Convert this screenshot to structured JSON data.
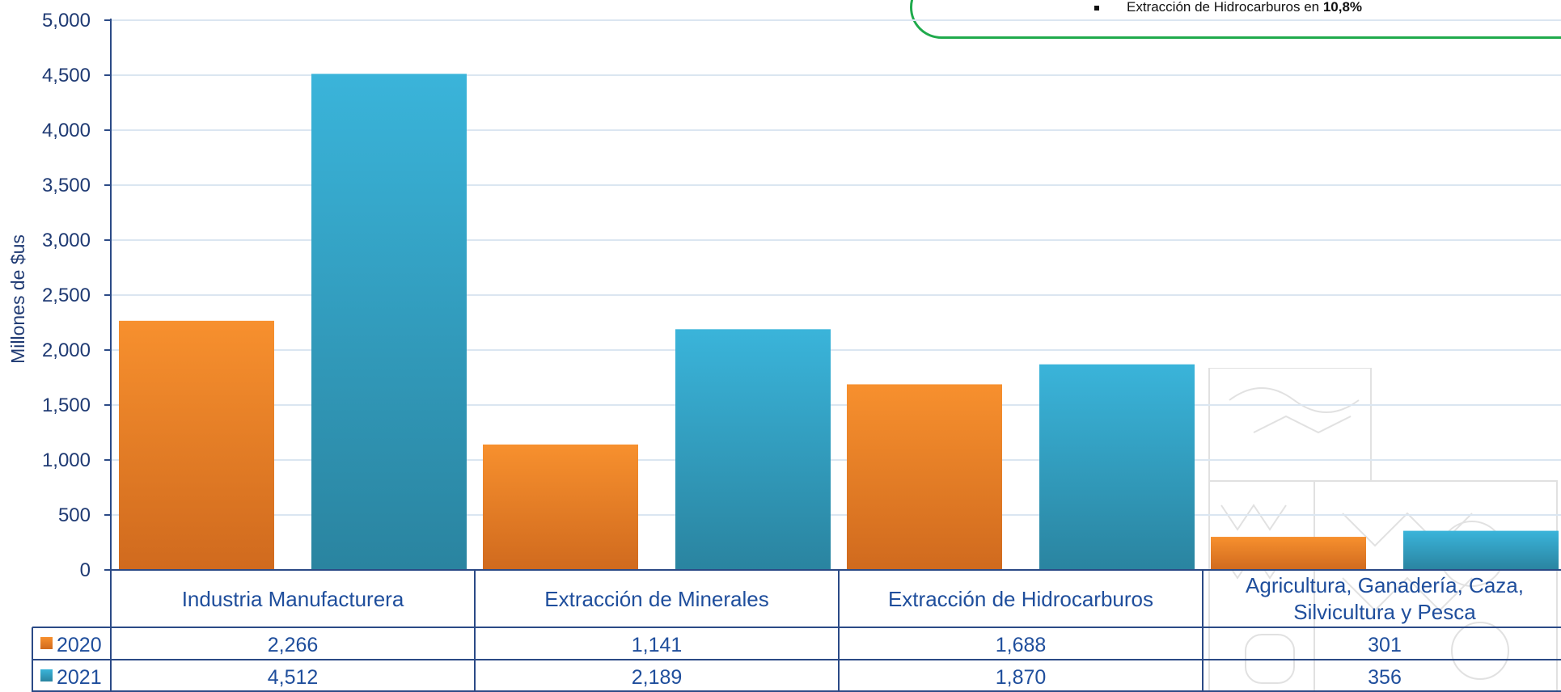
{
  "colors": {
    "series_2020": "#f7882a",
    "series_2020_dark": "#cf6a1d",
    "series_2021": "#38b4d8",
    "series_2021_dark": "#2a8aa3",
    "axis": "#2b4a86",
    "text": "#1f4e9c",
    "callout_border": "#1faa4c"
  },
  "callout": {
    "item_text": "Extracción de Hidrocarburos  en ",
    "item_value": "10,8%"
  },
  "chart_data": {
    "type": "bar",
    "ylabel": "Millones de $us",
    "ylim": [
      0,
      5000
    ],
    "yticks": [
      0,
      500,
      1000,
      1500,
      2000,
      2500,
      3000,
      3500,
      4000,
      4500,
      5000
    ],
    "ytick_labels": [
      "0",
      "500",
      "1,000",
      "1,500",
      "2,000",
      "2,500",
      "3,000",
      "3,500",
      "4,000",
      "4,500",
      "5,000"
    ],
    "grid": true,
    "categories": [
      [
        "Industria Manufacturera"
      ],
      [
        "Extracción de Minerales"
      ],
      [
        "Extracción de Hidrocarburos"
      ],
      [
        "Agricultura, Ganadería, Caza,",
        "Silvicultura y Pesca"
      ]
    ],
    "series": [
      {
        "name": "2020",
        "values": [
          2266,
          1141,
          1688,
          301
        ],
        "labels": [
          "2,266",
          "1,141",
          "1,688",
          "301"
        ]
      },
      {
        "name": "2021",
        "values": [
          4512,
          2189,
          1870,
          356
        ],
        "labels": [
          "4,512",
          "2,189",
          "1,870",
          "356"
        ]
      }
    ],
    "legend": "data-table"
  }
}
